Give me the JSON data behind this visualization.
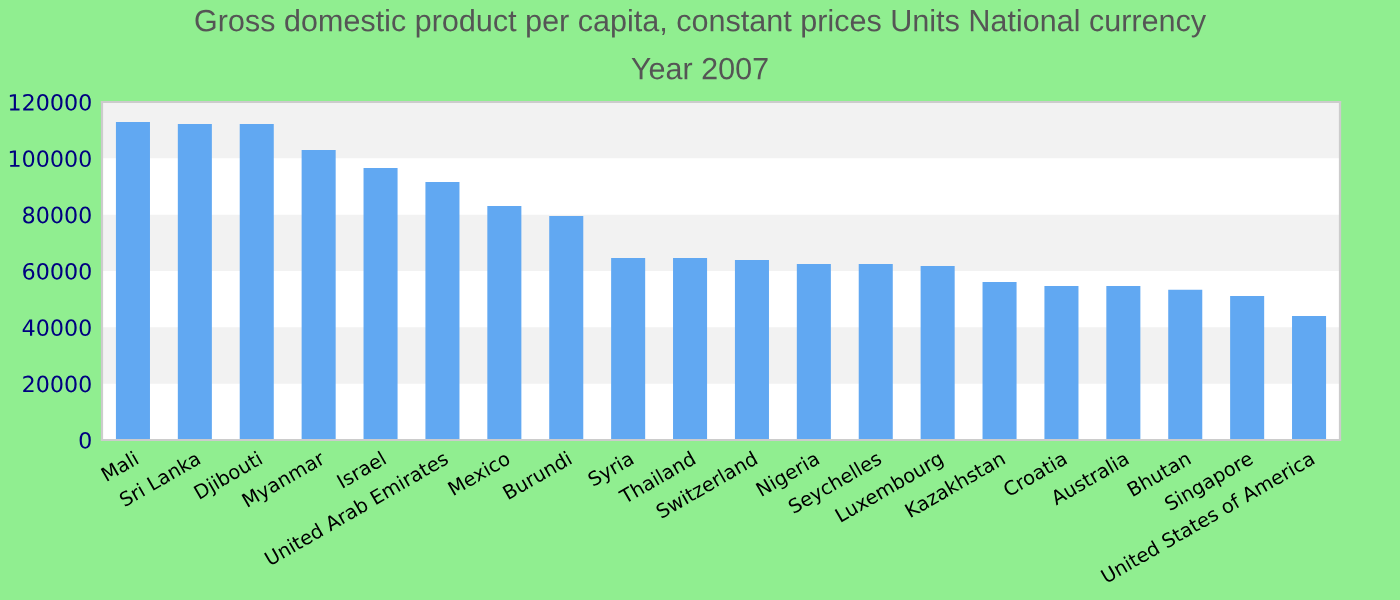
{
  "chart_data": {
    "type": "bar",
    "title": "Gross domestic product per capita, constant prices Units National currency",
    "subtitle": "Year 2007",
    "categories": [
      "Mali",
      "Sri Lanka",
      "Djibouti",
      "Myanmar",
      "Israel",
      "United Arab Emirates",
      "Mexico",
      "Burundi",
      "Syria",
      "Thailand",
      "Switzerland",
      "Nigeria",
      "Seychelles",
      "Luxembourg",
      "Kazakhstan",
      "Croatia",
      "Australia",
      "Bhutan",
      "Singapore",
      "United States of America"
    ],
    "values": [
      112900,
      112200,
      112200,
      103000,
      96600,
      91600,
      83100,
      79500,
      64600,
      64600,
      63900,
      62500,
      62500,
      61800,
      56100,
      54700,
      54700,
      53300,
      51100,
      44000
    ],
    "color": "#61a8f2",
    "ylim": [
      0,
      120000
    ],
    "yticks": [
      0,
      20000,
      40000,
      60000,
      80000,
      100000,
      120000
    ],
    "legend": false,
    "bands": [
      {
        "axis": "y",
        "from": 20000,
        "to": 40000,
        "color": "#f2f2f2"
      },
      {
        "axis": "y",
        "from": 60000,
        "to": 80000,
        "color": "#f2f2f2"
      },
      {
        "axis": "y",
        "from": 100000,
        "to": 120000,
        "color": "#f2f2f2"
      }
    ]
  }
}
